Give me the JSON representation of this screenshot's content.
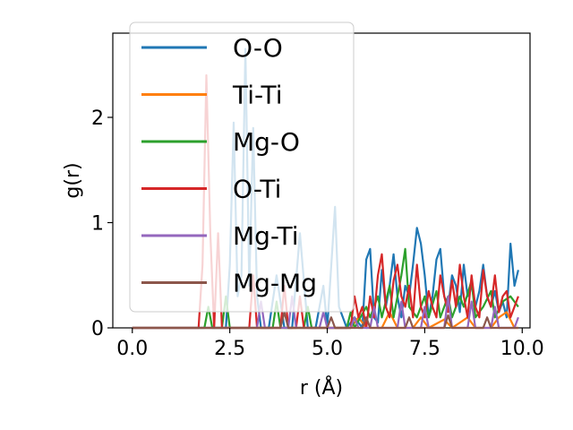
{
  "chart_data": {
    "type": "line",
    "title": "",
    "xlabel": "r (Å)",
    "ylabel": "g(r)",
    "xlim": [
      -0.5,
      10.2
    ],
    "ylim": [
      0,
      2.8
    ],
    "xticks": [
      0.0,
      2.5,
      5.0,
      7.5,
      10.0
    ],
    "xtick_labels": [
      "0.0",
      "2.5",
      "5.0",
      "7.5",
      "10.0"
    ],
    "yticks": [
      0,
      1,
      2
    ],
    "ytick_labels": [
      "0",
      "1",
      "2"
    ],
    "grid": false,
    "legend_position": "upper-left",
    "series": [
      {
        "name": "O-O",
        "color": "#1f77b4",
        "points": [
          [
            0,
            0
          ],
          [
            1.5,
            0
          ],
          [
            2.4,
            0
          ],
          [
            2.5,
            0.6
          ],
          [
            2.6,
            1.95
          ],
          [
            2.7,
            0.3
          ],
          [
            2.8,
            0.5
          ],
          [
            2.9,
            2.65
          ],
          [
            3.0,
            0.4
          ],
          [
            3.1,
            1.9
          ],
          [
            3.2,
            0.3
          ],
          [
            3.3,
            0
          ],
          [
            3.5,
            0
          ],
          [
            3.7,
            0.5
          ],
          [
            3.9,
            0
          ],
          [
            4.1,
            0
          ],
          [
            4.3,
            0.9
          ],
          [
            4.5,
            0
          ],
          [
            4.7,
            0
          ],
          [
            4.9,
            0.4
          ],
          [
            5.0,
            0
          ],
          [
            5.2,
            1.15
          ],
          [
            5.3,
            0.2
          ],
          [
            5.5,
            0
          ],
          [
            5.7,
            0.1
          ],
          [
            5.9,
            0
          ],
          [
            6.0,
            0.65
          ],
          [
            6.1,
            0.75
          ],
          [
            6.2,
            0.1
          ],
          [
            6.3,
            0.05
          ],
          [
            6.4,
            0.55
          ],
          [
            6.5,
            0.2
          ],
          [
            6.6,
            0.4
          ],
          [
            6.7,
            0.7
          ],
          [
            6.8,
            0.3
          ],
          [
            6.9,
            0.1
          ],
          [
            7.0,
            0.4
          ],
          [
            7.1,
            0.3
          ],
          [
            7.2,
            0.6
          ],
          [
            7.3,
            0.95
          ],
          [
            7.4,
            0.8
          ],
          [
            7.5,
            0.5
          ],
          [
            7.6,
            0.1
          ],
          [
            7.7,
            0.3
          ],
          [
            7.8,
            0.65
          ],
          [
            7.9,
            0.75
          ],
          [
            8.0,
            0.3
          ],
          [
            8.1,
            0.2
          ],
          [
            8.2,
            0.5
          ],
          [
            8.3,
            0.4
          ],
          [
            8.4,
            0.15
          ],
          [
            8.5,
            0.6
          ],
          [
            8.6,
            0.3
          ],
          [
            8.7,
            0.4
          ],
          [
            8.8,
            0.2
          ],
          [
            8.9,
            0.35
          ],
          [
            9.0,
            0.6
          ],
          [
            9.1,
            0.3
          ],
          [
            9.2,
            0.2
          ],
          [
            9.3,
            0.35
          ],
          [
            9.4,
            0.15
          ],
          [
            9.5,
            0.25
          ],
          [
            9.6,
            0.1
          ],
          [
            9.7,
            0.8
          ],
          [
            9.8,
            0.4
          ],
          [
            9.9,
            0.55
          ]
        ]
      },
      {
        "name": "Ti-Ti",
        "color": "#ff7f0e",
        "points": [
          [
            0,
            0
          ],
          [
            5.6,
            0
          ],
          [
            5.8,
            0.1
          ],
          [
            6.0,
            0
          ],
          [
            6.4,
            0
          ],
          [
            6.6,
            0.15
          ],
          [
            6.8,
            0
          ],
          [
            7.2,
            0
          ],
          [
            7.4,
            0.1
          ],
          [
            7.6,
            0
          ],
          [
            8.0,
            0.08
          ],
          [
            8.2,
            0
          ],
          [
            8.6,
            0.1
          ],
          [
            8.8,
            0
          ],
          [
            9.2,
            0
          ],
          [
            9.4,
            0.1
          ],
          [
            9.6,
            0.15
          ],
          [
            9.8,
            0
          ],
          [
            9.9,
            0
          ]
        ]
      },
      {
        "name": "Mg-O",
        "color": "#2ca02c",
        "points": [
          [
            0,
            0
          ],
          [
            1.85,
            0
          ],
          [
            1.95,
            0.2
          ],
          [
            2.05,
            0
          ],
          [
            2.3,
            0
          ],
          [
            2.4,
            0.3
          ],
          [
            2.5,
            0
          ],
          [
            3.6,
            0
          ],
          [
            3.7,
            0.25
          ],
          [
            3.8,
            0
          ],
          [
            4.4,
            0
          ],
          [
            4.5,
            0.2
          ],
          [
            4.6,
            0
          ],
          [
            5.5,
            0
          ],
          [
            5.6,
            0.15
          ],
          [
            5.7,
            0
          ],
          [
            6.0,
            0.2
          ],
          [
            6.1,
            0.1
          ],
          [
            6.3,
            0.3
          ],
          [
            6.4,
            0.1
          ],
          [
            6.6,
            0.4
          ],
          [
            6.7,
            0.1
          ],
          [
            6.9,
            0.5
          ],
          [
            7.0,
            0.75
          ],
          [
            7.1,
            0.2
          ],
          [
            7.3,
            0.1
          ],
          [
            7.5,
            0.3
          ],
          [
            7.6,
            0.1
          ],
          [
            7.8,
            0.35
          ],
          [
            7.9,
            0.1
          ],
          [
            8.1,
            0.3
          ],
          [
            8.2,
            0.1
          ],
          [
            8.4,
            0.3
          ],
          [
            8.5,
            0.2
          ],
          [
            8.7,
            0.45
          ],
          [
            8.8,
            0.1
          ],
          [
            9.0,
            0.2
          ],
          [
            9.2,
            0.35
          ],
          [
            9.3,
            0.1
          ],
          [
            9.5,
            0.25
          ],
          [
            9.7,
            0.3
          ],
          [
            9.9,
            0.2
          ]
        ]
      },
      {
        "name": "O-Ti",
        "color": "#d62728",
        "points": [
          [
            0,
            0
          ],
          [
            1.7,
            0
          ],
          [
            1.8,
            0.6
          ],
          [
            1.9,
            2.4
          ],
          [
            2.0,
            0.9
          ],
          [
            2.1,
            0
          ],
          [
            2.2,
            0.9
          ],
          [
            2.3,
            0
          ],
          [
            3.0,
            0
          ],
          [
            3.1,
            0.5
          ],
          [
            3.2,
            0
          ],
          [
            3.8,
            0
          ],
          [
            3.9,
            0.4
          ],
          [
            4.0,
            0
          ],
          [
            4.2,
            0
          ],
          [
            4.3,
            0.3
          ],
          [
            4.4,
            0
          ],
          [
            5.6,
            0
          ],
          [
            5.7,
            0.3
          ],
          [
            5.8,
            0.1
          ],
          [
            5.9,
            0.2
          ],
          [
            6.0,
            0
          ],
          [
            6.1,
            0.3
          ],
          [
            6.2,
            0.1
          ],
          [
            6.3,
            0.5
          ],
          [
            6.4,
            0.7
          ],
          [
            6.5,
            0.2
          ],
          [
            6.6,
            0.1
          ],
          [
            6.7,
            0.45
          ],
          [
            6.8,
            0.6
          ],
          [
            6.9,
            0.3
          ],
          [
            7.0,
            0.2
          ],
          [
            7.1,
            0.4
          ],
          [
            7.2,
            0.1
          ],
          [
            7.3,
            0.6
          ],
          [
            7.4,
            0.2
          ],
          [
            7.5,
            0.1
          ],
          [
            7.6,
            0.35
          ],
          [
            7.7,
            0.2
          ],
          [
            7.8,
            0.1
          ],
          [
            7.9,
            0.5
          ],
          [
            8.0,
            0.3
          ],
          [
            8.1,
            0.15
          ],
          [
            8.2,
            0.45
          ],
          [
            8.3,
            0.2
          ],
          [
            8.4,
            0.6
          ],
          [
            8.5,
            0.3
          ],
          [
            8.6,
            0.1
          ],
          [
            8.7,
            0.5
          ],
          [
            8.8,
            0.2
          ],
          [
            8.9,
            0.1
          ],
          [
            9.0,
            0.55
          ],
          [
            9.1,
            0.3
          ],
          [
            9.2,
            0.2
          ],
          [
            9.3,
            0.5
          ],
          [
            9.4,
            0.15
          ],
          [
            9.5,
            0.3
          ],
          [
            9.6,
            0.35
          ],
          [
            9.7,
            0.1
          ],
          [
            9.8,
            0.2
          ],
          [
            9.9,
            0.3
          ]
        ]
      },
      {
        "name": "Mg-Ti",
        "color": "#9467bd",
        "points": [
          [
            0,
            0
          ],
          [
            3.2,
            0
          ],
          [
            3.3,
            0.25
          ],
          [
            3.4,
            0
          ],
          [
            4.0,
            0
          ],
          [
            4.1,
            0.3
          ],
          [
            4.2,
            0
          ],
          [
            4.8,
            0
          ],
          [
            4.9,
            0.15
          ],
          [
            5.0,
            0
          ],
          [
            5.6,
            0
          ],
          [
            5.7,
            0.1
          ],
          [
            5.8,
            0
          ],
          [
            6.1,
            0
          ],
          [
            6.2,
            0.2
          ],
          [
            6.3,
            0
          ],
          [
            6.8,
            0
          ],
          [
            6.9,
            0.25
          ],
          [
            7.0,
            0
          ],
          [
            7.4,
            0
          ],
          [
            7.5,
            0.2
          ],
          [
            7.6,
            0
          ],
          [
            8.0,
            0
          ],
          [
            8.1,
            0.3
          ],
          [
            8.2,
            0
          ],
          [
            8.6,
            0
          ],
          [
            8.7,
            0.25
          ],
          [
            8.8,
            0
          ],
          [
            9.2,
            0
          ],
          [
            9.3,
            0.2
          ],
          [
            9.4,
            0
          ],
          [
            9.8,
            0
          ],
          [
            9.9,
            0.1
          ]
        ]
      },
      {
        "name": "Mg-Mg",
        "color": "#8c564b",
        "points": [
          [
            0,
            0
          ],
          [
            3.8,
            0
          ],
          [
            3.9,
            0.15
          ],
          [
            4.0,
            0
          ],
          [
            5.0,
            0
          ],
          [
            5.1,
            0.1
          ],
          [
            5.2,
            0
          ],
          [
            5.9,
            0
          ],
          [
            6.0,
            0.1
          ],
          [
            6.1,
            0
          ],
          [
            7.0,
            0
          ],
          [
            7.1,
            0.1
          ],
          [
            7.2,
            0
          ],
          [
            8.0,
            0
          ],
          [
            8.1,
            0.12
          ],
          [
            8.2,
            0
          ],
          [
            9.0,
            0
          ],
          [
            9.1,
            0.1
          ],
          [
            9.2,
            0
          ],
          [
            9.9,
            0
          ]
        ]
      }
    ]
  }
}
